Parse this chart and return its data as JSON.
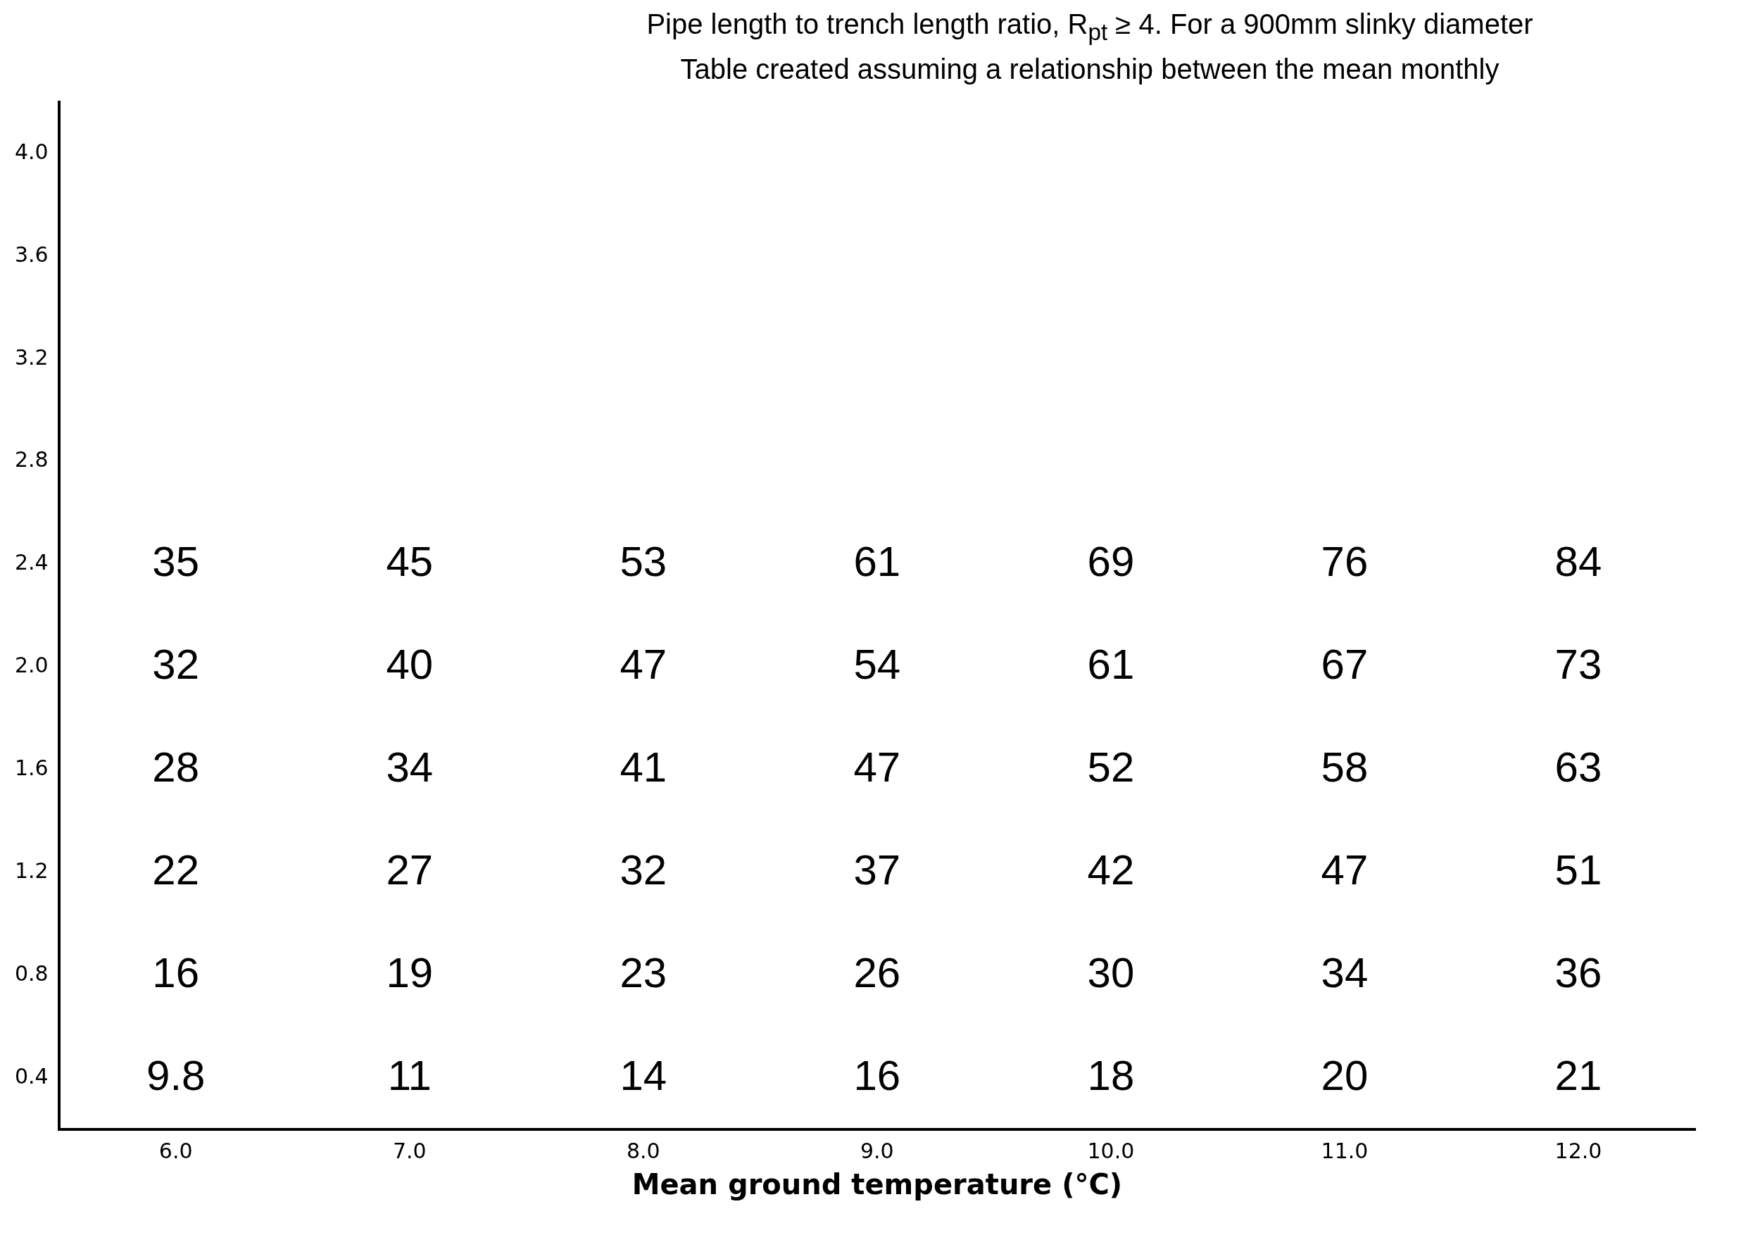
{
  "chart_data": {
    "type": "heatmap",
    "annotations": [
      "Pipe length to trench length ratio, R$_{pt}$ ≥ 4.  For a 900mm slinky diameter",
      "Table created assuming a relationship between the mean monthly"
    ],
    "xlabel": "Mean ground temperature (°C)",
    "categories": [
      "6.0",
      "7.0",
      "8.0",
      "9.0",
      "10.0",
      "11.0",
      "12.0"
    ],
    "y_categories": [
      "4.0",
      "3.6",
      "3.2",
      "2.8",
      "2.4",
      "2.0",
      "1.6",
      "1.2",
      "0.8",
      "0.4"
    ],
    "cells": [
      [
        null,
        null,
        null,
        null,
        null,
        null,
        null
      ],
      [
        null,
        null,
        null,
        null,
        null,
        null,
        null
      ],
      [
        null,
        null,
        null,
        null,
        null,
        null,
        null
      ],
      [
        null,
        null,
        null,
        null,
        null,
        null,
        null
      ],
      [
        35,
        45,
        53,
        61,
        69,
        76,
        84
      ],
      [
        32,
        40,
        47,
        54,
        61,
        67,
        73
      ],
      [
        28,
        34,
        41,
        47,
        52,
        58,
        63
      ],
      [
        22,
        27,
        32,
        37,
        42,
        47,
        51
      ],
      [
        16,
        19,
        23,
        26,
        30,
        34,
        36
      ],
      [
        9.8,
        11,
        14,
        16,
        18,
        20,
        21
      ]
    ],
    "data_labels": true
  }
}
